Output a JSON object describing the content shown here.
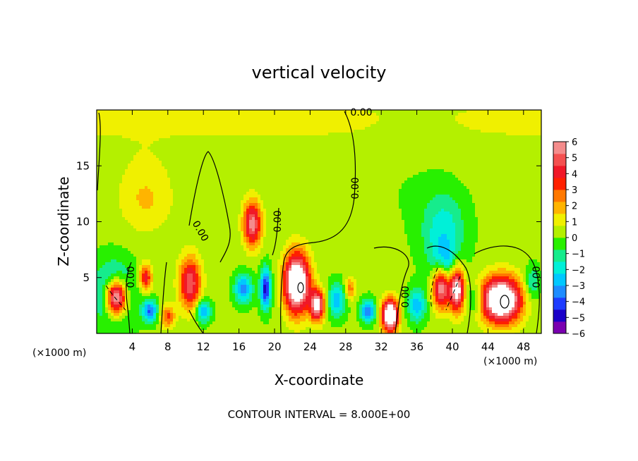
{
  "chart_data": {
    "type": "heatmap",
    "title": "vertical velocity",
    "xlabel": "X-coordinate",
    "ylabel": "Z-coordinate",
    "x_unit_label": "(×1000 m)",
    "footer": "CONTOUR INTERVAL = 8.000E+00",
    "xlim": [
      0,
      50
    ],
    "ylim": [
      0,
      20
    ],
    "x_ticks": [
      4,
      8,
      12,
      16,
      20,
      24,
      28,
      32,
      36,
      40,
      44,
      48
    ],
    "y_ticks": [
      5,
      10,
      15
    ],
    "colorbar": {
      "ticks": [
        6,
        5,
        4,
        3,
        2,
        1,
        0,
        -1,
        -2,
        -3,
        -4,
        -5,
        -6
      ],
      "range": [
        -6,
        6
      ],
      "colors": [
        "#7a00b0",
        "#1a00c8",
        "#1e3cff",
        "#1e8cff",
        "#00c8ff",
        "#00f0d8",
        "#16ec8c",
        "#28f000",
        "#b4f000",
        "#f0f000",
        "#ffb400",
        "#ff7800",
        "#ff2000",
        "#f01828",
        "#f45050",
        "#f48c8c"
      ]
    },
    "contour_labels": [
      "0.00",
      "0.00",
      "0.00",
      "0.00",
      "0.00",
      "0.00",
      "0.00",
      "0.00"
    ],
    "blobs": [
      {
        "x": 2.0,
        "z": 3.5,
        "w": -3.5,
        "rx": 2.2,
        "rz": 2.8
      },
      {
        "x": 2.2,
        "z": 3.2,
        "w": 9.0,
        "rx": 1.2,
        "rz": 1.6
      },
      {
        "x": 5.5,
        "z": 5.0,
        "w": 4.0,
        "rx": 0.7,
        "rz": 1.2
      },
      {
        "x": 6.0,
        "z": 2.0,
        "w": -4.0,
        "rx": 0.8,
        "rz": 1.0
      },
      {
        "x": 5.5,
        "z": 12.0,
        "w": 1.4,
        "rx": 3.0,
        "rz": 3.0
      },
      {
        "x": 8.0,
        "z": 1.5,
        "w": 3.0,
        "rx": 0.8,
        "rz": 1.0
      },
      {
        "x": 10.5,
        "z": 4.5,
        "w": 5.0,
        "rx": 1.2,
        "rz": 2.3
      },
      {
        "x": 12.0,
        "z": 2.0,
        "w": -3.5,
        "rx": 0.8,
        "rz": 1.0
      },
      {
        "x": 17.5,
        "z": 9.8,
        "w": 5.5,
        "rx": 1.0,
        "rz": 2.0
      },
      {
        "x": 16.5,
        "z": 4.0,
        "w": -3.5,
        "rx": 1.0,
        "rz": 1.3
      },
      {
        "x": 19.0,
        "z": 4.0,
        "w": -5.0,
        "rx": 0.6,
        "rz": 1.8
      },
      {
        "x": 22.5,
        "z": 4.5,
        "w": 9.0,
        "rx": 1.4,
        "rz": 2.6
      },
      {
        "x": 24.8,
        "z": 2.5,
        "w": 6.5,
        "rx": 0.8,
        "rz": 1.4
      },
      {
        "x": 27.0,
        "z": 3.0,
        "w": -3.0,
        "rx": 1.0,
        "rz": 1.5
      },
      {
        "x": 28.5,
        "z": 4.0,
        "w": 2.5,
        "rx": 0.6,
        "rz": 1.0
      },
      {
        "x": 30.5,
        "z": 2.0,
        "w": -4.0,
        "rx": 0.8,
        "rz": 1.0
      },
      {
        "x": 33.0,
        "z": 1.6,
        "w": 9.0,
        "rx": 0.9,
        "rz": 1.4
      },
      {
        "x": 36.0,
        "z": 2.5,
        "w": -3.0,
        "rx": 1.0,
        "rz": 1.5
      },
      {
        "x": 39.0,
        "z": 9.0,
        "w": -2.2,
        "rx": 2.4,
        "rz": 3.5
      },
      {
        "x": 39.0,
        "z": 5.5,
        "w": -5.0,
        "rx": 1.2,
        "rz": 2.0
      },
      {
        "x": 38.8,
        "z": 4.5,
        "w": 9.0,
        "rx": 1.0,
        "rz": 2.0
      },
      {
        "x": 40.5,
        "z": 4.0,
        "w": 7.0,
        "rx": 0.8,
        "rz": 2.0
      },
      {
        "x": 42.5,
        "z": 3.0,
        "w": -2.0,
        "rx": 0.8,
        "rz": 1.2
      },
      {
        "x": 45.5,
        "z": 3.0,
        "w": 9.0,
        "rx": 2.2,
        "rz": 2.0
      },
      {
        "x": 49.0,
        "z": 4.5,
        "w": -2.0,
        "rx": 0.8,
        "rz": 1.5
      }
    ]
  }
}
